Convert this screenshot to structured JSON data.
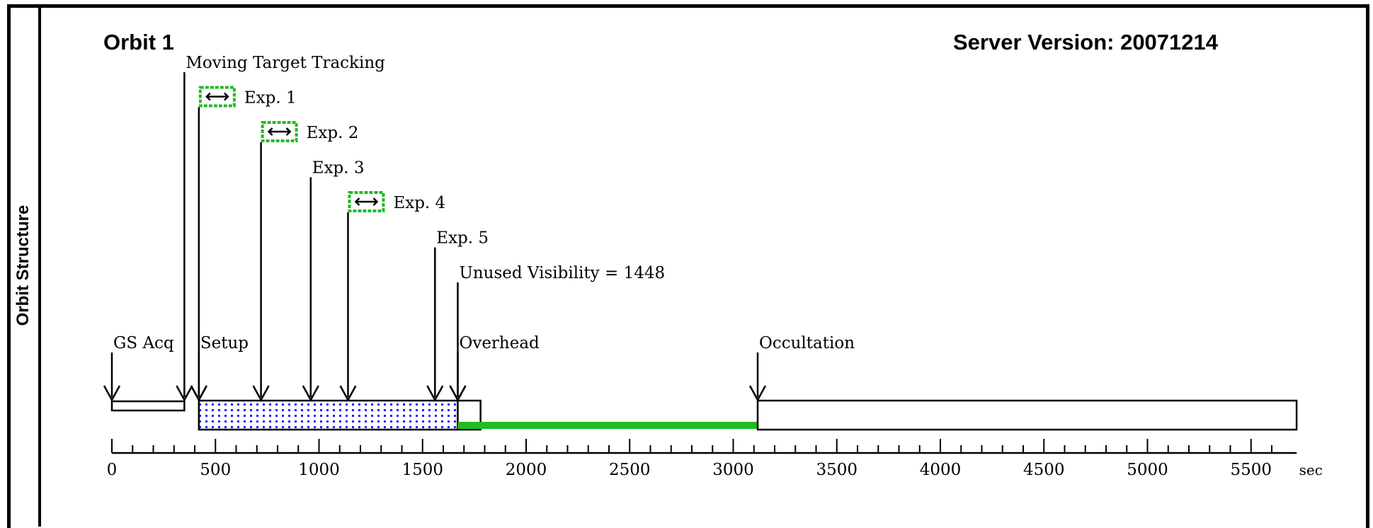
{
  "side_label": "Orbit Structure",
  "orbit_title": "Orbit 1",
  "server_version": "Server Version: 20071214",
  "colors": {
    "green": "#22bb22",
    "blue_dots": "#1a1aff",
    "black": "#000000"
  },
  "chart_data": {
    "type": "timeline",
    "axis": {
      "min": 0,
      "max": 5700,
      "major_step": 500,
      "minor_step": 100,
      "unit": "sec",
      "tick_labels": [
        "0",
        "500",
        "1000",
        "1500",
        "2000",
        "2500",
        "3000",
        "3500",
        "4000",
        "4500",
        "5000",
        "5500"
      ]
    },
    "bars": [
      {
        "name": "gs-acq-bar",
        "start": 0,
        "end": 350,
        "fill": "none",
        "row": "thin"
      },
      {
        "name": "setup-exposure-bar",
        "start": 420,
        "end": 1670,
        "fill": "dots",
        "row": "main"
      },
      {
        "name": "overhead-bar",
        "start": 1670,
        "end": 1780,
        "fill": "none",
        "row": "main"
      },
      {
        "name": "unused-visibility-bar",
        "start": 1670,
        "end": 3118,
        "fill": "green",
        "row": "below"
      },
      {
        "name": "occultation-bar",
        "start": 3118,
        "end": 5720,
        "fill": "none",
        "row": "main"
      }
    ],
    "markers": [
      {
        "name": "gs-acq-marker",
        "t": 0,
        "label": "GS Acq",
        "row": 9
      },
      {
        "name": "moving-target-marker",
        "t": 350,
        "label": "Moving Target Tracking",
        "row": 1
      },
      {
        "name": "setup-marker",
        "t": 420,
        "label": "Setup",
        "row": 9
      },
      {
        "name": "exp1-marker",
        "t": 420,
        "label": "Exp. 1",
        "row": 2,
        "icon": true
      },
      {
        "name": "exp2-marker",
        "t": 720,
        "label": "Exp. 2",
        "row": 3,
        "icon": true
      },
      {
        "name": "exp3-marker",
        "t": 960,
        "label": "Exp. 3",
        "row": 4
      },
      {
        "name": "exp4-marker",
        "t": 1140,
        "label": "Exp. 4",
        "row": 5,
        "icon": true
      },
      {
        "name": "exp5-marker",
        "t": 1560,
        "label": "Exp. 5",
        "row": 6
      },
      {
        "name": "unused-visibility-marker",
        "t": 1670,
        "label": "Unused Visibility = 1448",
        "row": 7
      },
      {
        "name": "overhead-marker",
        "t": 1670,
        "label": "Overhead",
        "row": 9
      },
      {
        "name": "occultation-marker",
        "t": 3118,
        "label": "Occultation",
        "row": 9
      }
    ]
  }
}
